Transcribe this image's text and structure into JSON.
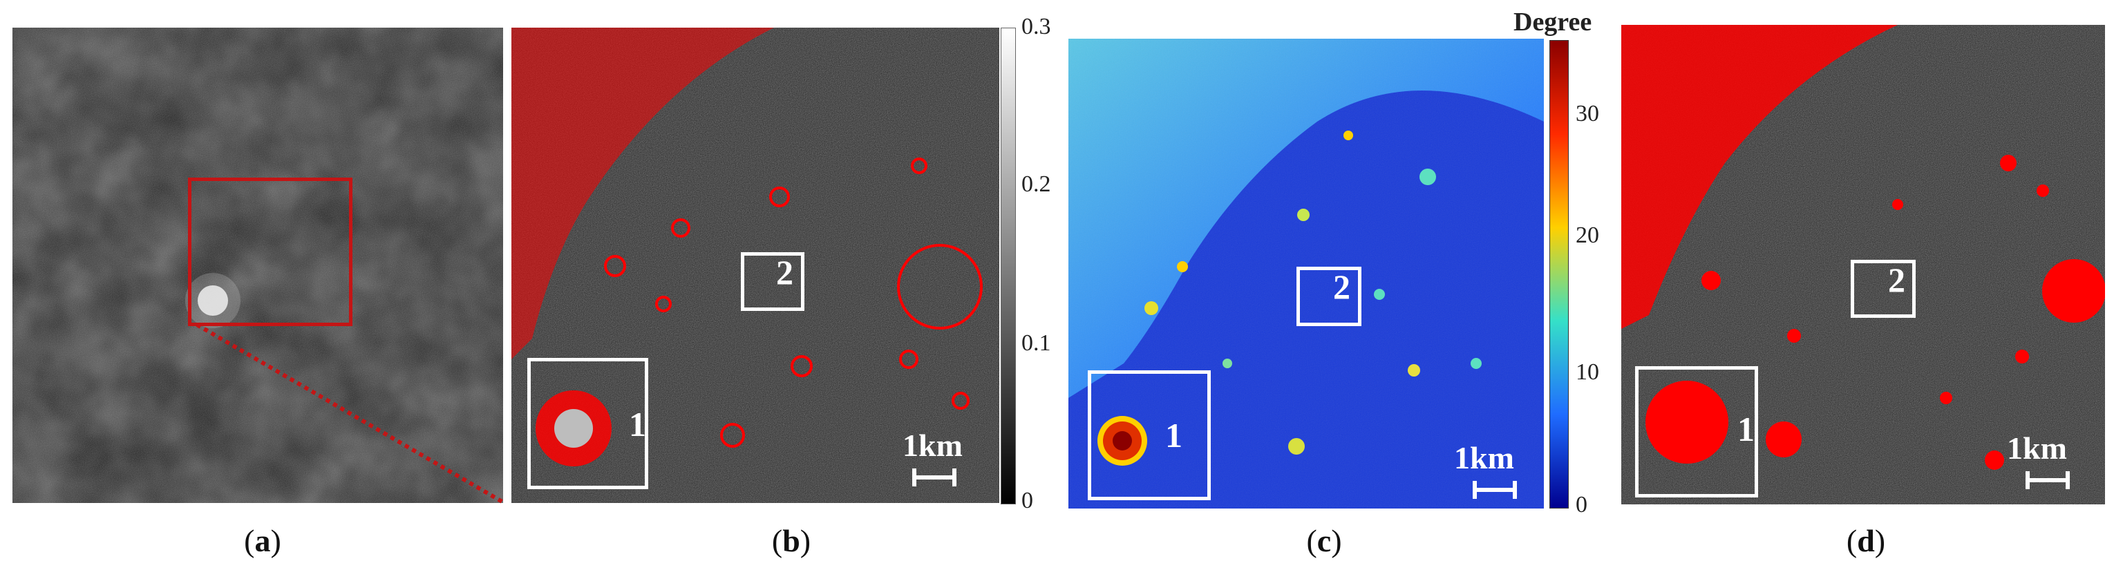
{
  "captions": [
    "a",
    "b",
    "c",
    "d"
  ],
  "region_labels": {
    "box1": "1",
    "box2": "2"
  },
  "scale_label": "1km",
  "colorbar_b": {
    "ticks": [
      "0.3",
      "0.2",
      "0.1",
      "0"
    ],
    "colors": [
      "#ffffff",
      "#000000"
    ]
  },
  "colorbar_c": {
    "unit": "Degree",
    "ticks": [
      "30",
      "20",
      "10",
      "0"
    ],
    "colors": [
      "#8b0000",
      "#ff2a00",
      "#ffd000",
      "#35e0c8",
      "#1f6cff",
      "#00008f"
    ]
  },
  "overlay_color": "#ff0000"
}
